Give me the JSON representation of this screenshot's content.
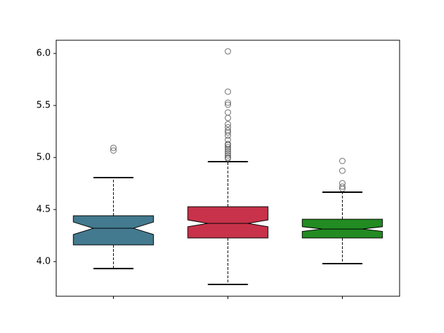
{
  "chart_data": {
    "type": "boxplot",
    "categories": [
      null,
      null,
      null
    ],
    "boxes": [
      {
        "color": "#437a8f",
        "whislo": 3.933,
        "q1": 4.16,
        "notch_lo": 4.26,
        "median": 4.32,
        "notch_hi": 4.38,
        "q3": 4.44,
        "whishi": 4.807,
        "outliers": [
          5.093,
          5.067
        ]
      },
      {
        "color": "#c8324a",
        "whislo": 3.78,
        "q1": 4.227,
        "notch_lo": 4.335,
        "median": 4.367,
        "notch_hi": 4.4,
        "q3": 4.527,
        "whishi": 4.96,
        "outliers": [
          6.02,
          5.633,
          5.527,
          5.507,
          5.433,
          5.38,
          5.32,
          5.29,
          5.26,
          5.24,
          5.21,
          5.17,
          5.13,
          5.12,
          5.1,
          5.08,
          5.06,
          5.04,
          5.02,
          5.0,
          4.99
        ]
      },
      {
        "color": "#228b22",
        "whislo": 3.98,
        "q1": 4.227,
        "notch_lo": 4.29,
        "median": 4.313,
        "notch_hi": 4.335,
        "q3": 4.407,
        "whishi": 4.667,
        "outliers": [
          4.967,
          4.873,
          4.753,
          4.72,
          4.7
        ]
      }
    ],
    "ylim": [
      3.667,
      6.127
    ],
    "yticks": [
      {
        "value": 4.0,
        "label": "4.0"
      },
      {
        "value": 4.5,
        "label": "4.5"
      },
      {
        "value": 5.0,
        "label": "5.0"
      },
      {
        "value": 5.5,
        "label": "5.5"
      },
      {
        "value": 6.0,
        "label": "6.0"
      }
    ]
  }
}
